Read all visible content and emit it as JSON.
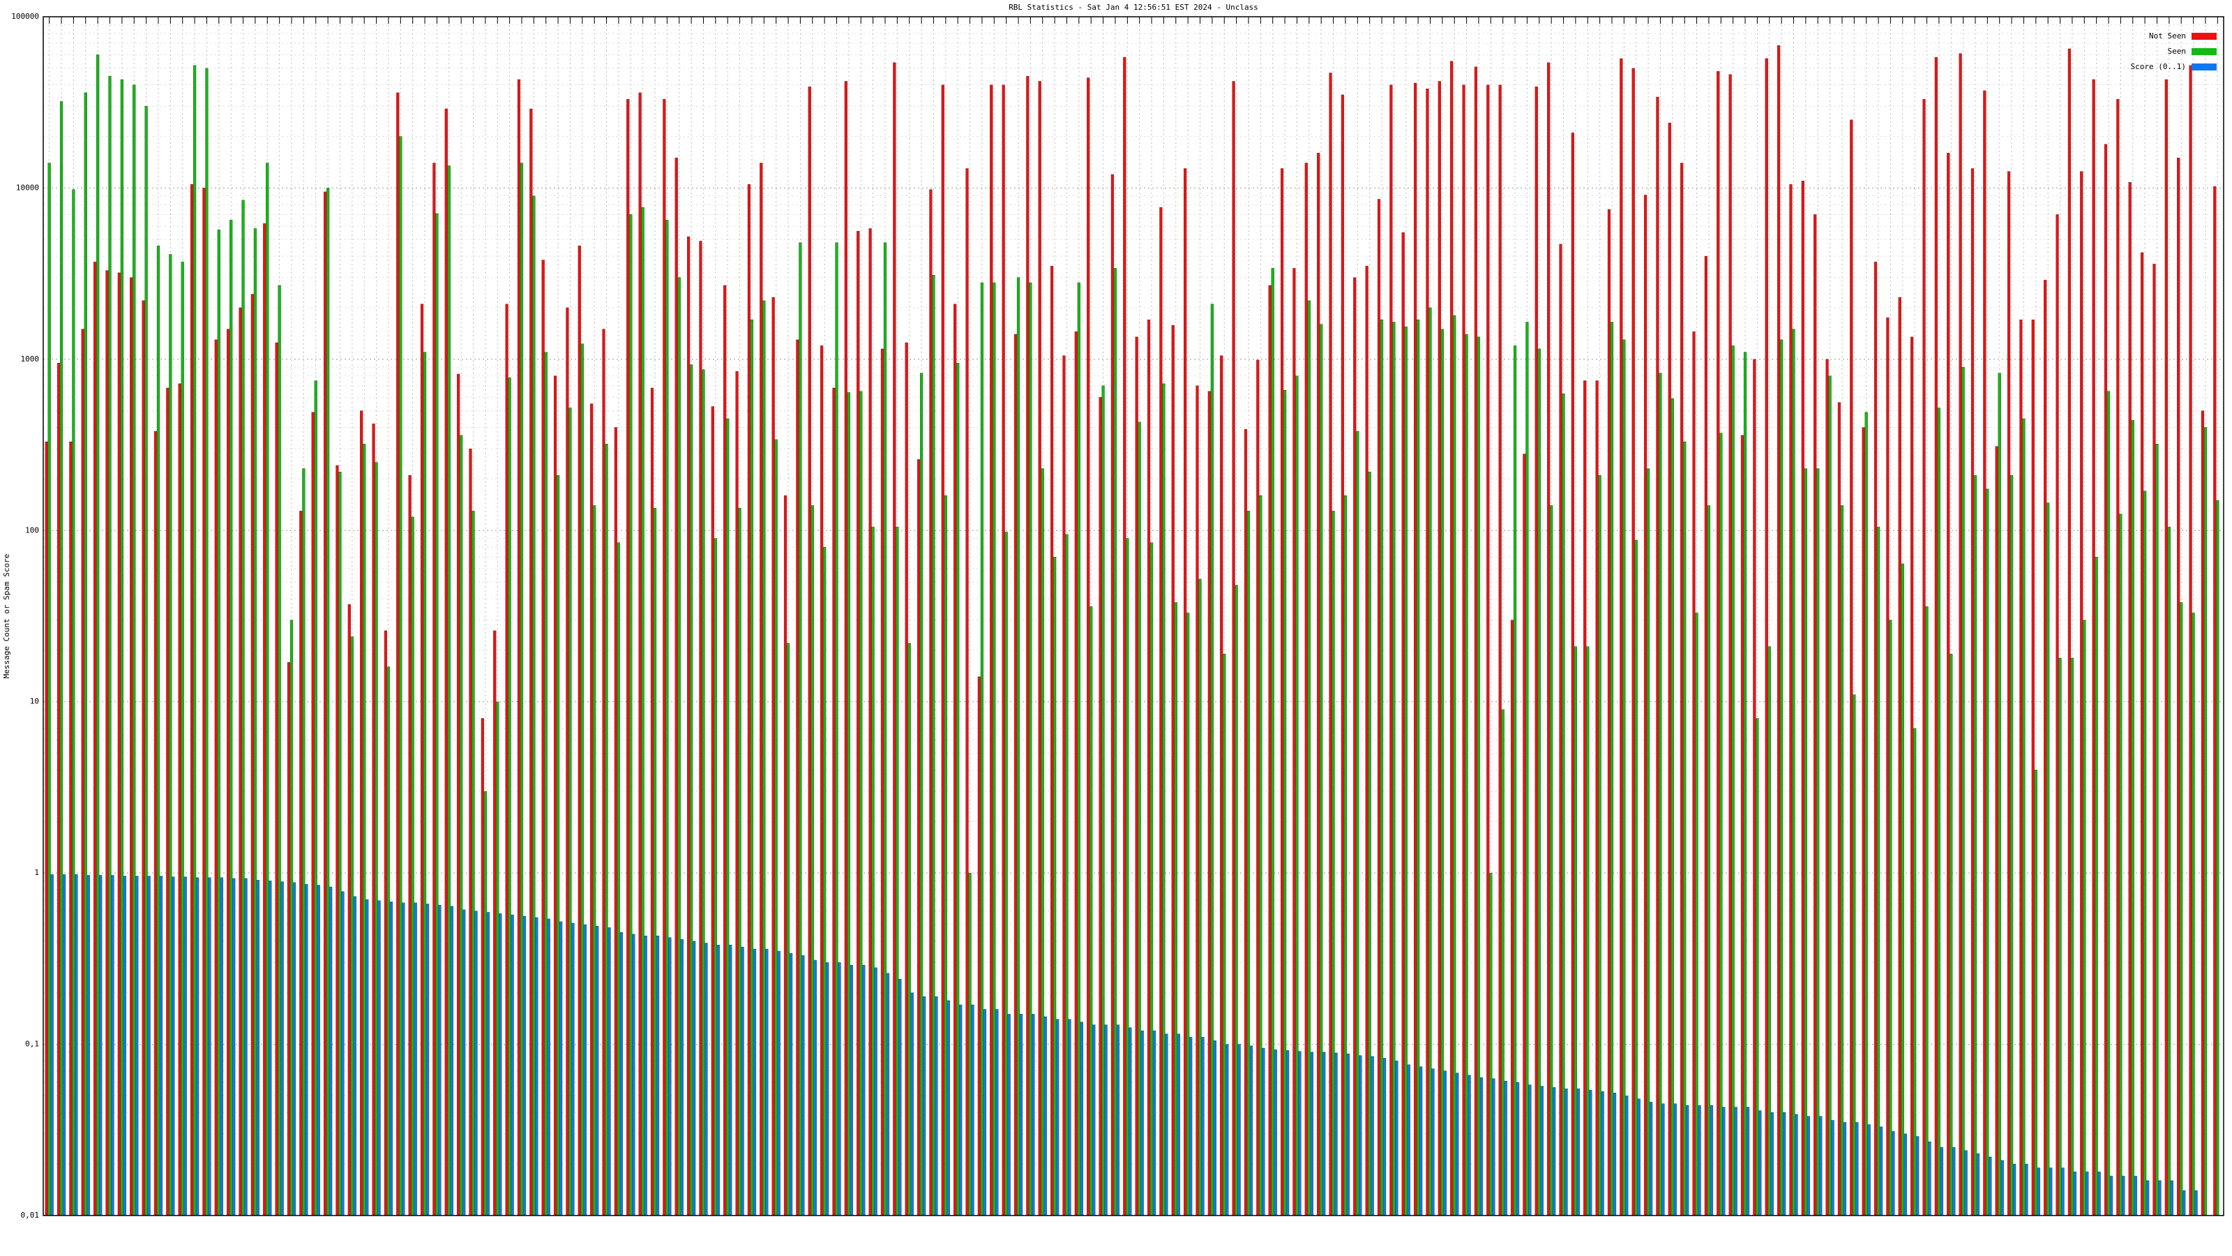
{
  "chart_data": {
    "type": "bar",
    "title": "RBL Statistics - Sat Jan  4 12:56:51 EST 2024 - Unclass",
    "y_label": "Message Count or Spam Score",
    "log_scale": true,
    "grid": true,
    "legend": "top-right",
    "ylim": [
      0.01,
      100000
    ],
    "yticks": [
      {
        "value": 0.01,
        "label": "0,01"
      },
      {
        "value": 0.1,
        "label": "0,1"
      },
      1,
      10,
      100,
      1000,
      10000,
      100000
    ],
    "categories": [
      null,
      null,
      null,
      null,
      null,
      null,
      null,
      null,
      null,
      null,
      null,
      null,
      null,
      null,
      null,
      null,
      null,
      null,
      null,
      null,
      null,
      null,
      null,
      null,
      null,
      null,
      null,
      null,
      null,
      null,
      null,
      null,
      null,
      null,
      null,
      null,
      null,
      null,
      null,
      null,
      null,
      null,
      null,
      null,
      null,
      null,
      null,
      null,
      null,
      null,
      null,
      null,
      null,
      null,
      null,
      null,
      null,
      null,
      null,
      null,
      null,
      null,
      null,
      null,
      null,
      null,
      null,
      null,
      null,
      null,
      null,
      null,
      null,
      null,
      null,
      null,
      null,
      null,
      null,
      null,
      null,
      null,
      null,
      null,
      null,
      null,
      null,
      null,
      null,
      null,
      null,
      null,
      null,
      null,
      null,
      null,
      null,
      null,
      null,
      null,
      null,
      null,
      null,
      null,
      null,
      null,
      null,
      null,
      null,
      null,
      null,
      null,
      null,
      null,
      null,
      null,
      null,
      null,
      null,
      null,
      null,
      null,
      null,
      null,
      null,
      null,
      null,
      null,
      null,
      null,
      null,
      null,
      null,
      null,
      null,
      null,
      null,
      null,
      null,
      null,
      null,
      null,
      null,
      null,
      null,
      null,
      null,
      null,
      null,
      null,
      null,
      null,
      null,
      null,
      null,
      null,
      null,
      null,
      null,
      null,
      null,
      null,
      null,
      null,
      null,
      null,
      null,
      null,
      null,
      null,
      null,
      null,
      null,
      null,
      null,
      null,
      null,
      null,
      null,
      null
    ],
    "series": [
      {
        "name": "Not Seen",
        "color": "#ee1111",
        "values": [
          330,
          950,
          330,
          1500,
          3700,
          3300,
          3200,
          3000,
          2200,
          380,
          680,
          720,
          10500,
          10000,
          1300,
          1500,
          2000,
          2400,
          6200,
          1250,
          17,
          130,
          490,
          9500,
          240,
          37,
          500,
          420,
          26,
          36000,
          210,
          2100,
          14000,
          29000,
          820,
          300,
          8,
          26,
          2100,
          43000,
          29000,
          3800,
          800,
          2000,
          4600,
          550,
          1500,
          400,
          33000,
          36000,
          680,
          33000,
          15000,
          5200,
          4900,
          530,
          2700,
          850,
          10500,
          14000,
          2300,
          160,
          1300,
          39000,
          1200,
          680,
          42000,
          5600,
          5800,
          1150,
          54000,
          1250,
          260,
          9800,
          40000,
          2100,
          13000,
          14,
          40000,
          40000,
          1400,
          45000,
          42000,
          3500,
          1050,
          1450,
          44000,
          600,
          12000,
          58000,
          1350,
          1700,
          7700,
          1580,
          13000,
          700,
          650,
          1050,
          42000,
          390,
          990,
          2700,
          13000,
          3400,
          14000,
          16000,
          47000,
          35000,
          3000,
          3500,
          8600,
          40000,
          5500,
          41000,
          38000,
          42000,
          55000,
          40000,
          51000,
          40000,
          40000,
          30,
          280,
          39000,
          54000,
          4700,
          21000,
          750,
          750,
          7500,
          57000,
          50000,
          9100,
          34000,
          24000,
          14000,
          1450,
          4000,
          48000,
          46000,
          360,
          1000,
          57000,
          68000,
          10500,
          11000,
          7000,
          1000,
          560,
          25000,
          400,
          3700,
          1750,
          2300,
          1350,
          33000,
          58000,
          16000,
          61000,
          13000,
          37000,
          310,
          12500,
          1700,
          1700,
          2900,
          7000,
          65000,
          12500,
          43000,
          18000,
          33000,
          10800,
          4200,
          3600,
          43000,
          15000,
          52000,
          500,
          10200
        ]
      },
      {
        "name": "Seen",
        "color": "#11bb11",
        "values": [
          14000,
          32000,
          9800,
          36000,
          60000,
          45000,
          43000,
          40000,
          30000,
          4600,
          4100,
          3700,
          52000,
          50000,
          5700,
          6500,
          8500,
          5800,
          14000,
          2700,
          30,
          230,
          750,
          10000,
          220,
          24,
          320,
          250,
          16,
          20000,
          120,
          1100,
          7100,
          13500,
          360,
          130,
          3,
          10,
          780,
          14000,
          9000,
          1100,
          210,
          520,
          1230,
          140,
          320,
          85,
          7000,
          7700,
          135,
          6500,
          3000,
          930,
          870,
          90,
          450,
          135,
          1700,
          2200,
          340,
          22,
          4800,
          140,
          80,
          4800,
          640,
          650,
          105,
          4800,
          105,
          22,
          830,
          3100,
          160,
          950,
          1,
          2800,
          2800,
          98,
          3000,
          2800,
          230,
          70,
          95,
          2800,
          36,
          700,
          3400,
          90,
          430,
          85,
          720,
          38,
          33,
          52,
          2100,
          19,
          48,
          130,
          160,
          3400,
          660,
          800,
          2200,
          1600,
          130,
          160,
          380,
          220,
          1700,
          1650,
          1550,
          1700,
          2000,
          1500,
          1800,
          1400,
          1350,
          1,
          9,
          1200,
          1650,
          1150,
          140,
          630,
          21,
          21,
          210,
          1650,
          1300,
          88,
          230,
          830,
          590,
          330,
          33,
          140,
          370,
          1200,
          1100,
          8,
          21,
          1300,
          1500,
          230,
          230,
          800,
          140,
          11,
          490,
          105,
          30,
          64,
          7,
          36,
          520,
          19,
          900,
          210,
          175,
          830,
          210,
          450,
          4,
          145,
          18,
          18,
          30,
          70,
          650,
          125,
          440,
          170,
          320,
          105,
          38,
          33,
          400,
          150
        ]
      },
      {
        "name": "Score (0..1)",
        "color": "#1177ee",
        "values": [
          0.98,
          0.98,
          0.98,
          0.97,
          0.97,
          0.97,
          0.96,
          0.96,
          0.96,
          0.96,
          0.95,
          0.95,
          0.94,
          0.94,
          0.94,
          0.93,
          0.93,
          0.91,
          0.9,
          0.89,
          0.88,
          0.86,
          0.85,
          0.83,
          0.78,
          0.73,
          0.7,
          0.69,
          0.68,
          0.67,
          0.67,
          0.66,
          0.65,
          0.64,
          0.61,
          0.6,
          0.59,
          0.58,
          0.57,
          0.56,
          0.55,
          0.54,
          0.52,
          0.51,
          0.5,
          0.49,
          0.48,
          0.45,
          0.44,
          0.43,
          0.43,
          0.42,
          0.41,
          0.4,
          0.39,
          0.38,
          0.38,
          0.37,
          0.36,
          0.36,
          0.35,
          0.34,
          0.33,
          0.31,
          0.3,
          0.3,
          0.29,
          0.29,
          0.28,
          0.26,
          0.24,
          0.2,
          0.19,
          0.19,
          0.18,
          0.17,
          0.17,
          0.16,
          0.16,
          0.15,
          0.15,
          0.15,
          0.145,
          0.14,
          0.14,
          0.135,
          0.13,
          0.13,
          0.13,
          0.125,
          0.12,
          0.12,
          0.115,
          0.115,
          0.11,
          0.11,
          0.105,
          0.1,
          0.1,
          0.098,
          0.095,
          0.093,
          0.092,
          0.091,
          0.09,
          0.09,
          0.089,
          0.088,
          0.086,
          0.085,
          0.083,
          0.08,
          0.076,
          0.074,
          0.072,
          0.07,
          0.068,
          0.066,
          0.064,
          0.063,
          0.061,
          0.06,
          0.058,
          0.057,
          0.056,
          0.055,
          0.055,
          0.054,
          0.053,
          0.052,
          0.05,
          0.048,
          0.046,
          0.045,
          0.045,
          0.044,
          0.044,
          0.044,
          0.043,
          0.043,
          0.043,
          0.041,
          0.04,
          0.04,
          0.039,
          0.038,
          0.038,
          0.036,
          0.035,
          0.035,
          0.034,
          0.033,
          0.031,
          0.03,
          0.029,
          0.027,
          0.025,
          0.025,
          0.024,
          0.023,
          0.022,
          0.021,
          0.02,
          0.02,
          0.019,
          0.019,
          0.019,
          0.018,
          0.018,
          0.018,
          0.017,
          0.017,
          0.017,
          0.016,
          0.016,
          0.016,
          0.014,
          0.014,
          null,
          null
        ]
      }
    ]
  }
}
